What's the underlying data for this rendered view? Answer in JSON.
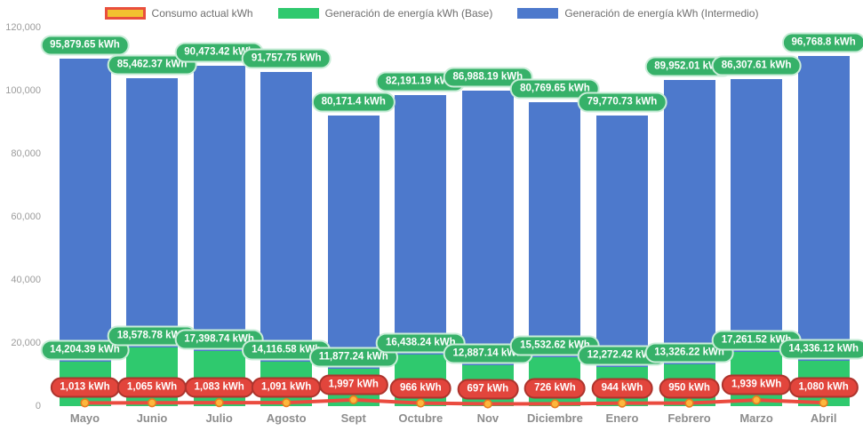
{
  "legend": {
    "items": [
      {
        "label": "Consumo actual kWh",
        "color": "#f2c230",
        "border": "#e94f3d"
      },
      {
        "label": "Generación de energía kWh (Base)",
        "color": "#2fc96e"
      },
      {
        "label": "Generación de energía kWh (Intermedio)",
        "color": "#4d79cc"
      }
    ]
  },
  "chart_data": {
    "type": "bar",
    "stacked": true,
    "title": "",
    "xlabel": "",
    "ylabel": "",
    "grid": false,
    "legend_position": "top",
    "ylim": [
      0,
      120000
    ],
    "y_ticks": [
      "0",
      "20,000",
      "40,000",
      "60,000",
      "80,000",
      "100,000",
      "120,000"
    ],
    "y_tick_values": [
      0,
      20000,
      40000,
      60000,
      80000,
      100000,
      120000
    ],
    "categories": [
      "Mayo",
      "Junio",
      "Julio",
      "Agosto",
      "Sept",
      "Octubre",
      "Nov",
      "Diciembre",
      "Enero",
      "Febrero",
      "Marzo",
      "Abril"
    ],
    "series": [
      {
        "name": "Consumo actual kWh",
        "type": "line",
        "color": "#ea4b3f",
        "marker_color": "#fcb73c",
        "marker_border": "#e87c1f",
        "label_bg": "#e2453c",
        "values": [
          1013,
          1065,
          1083,
          1091,
          1997,
          966,
          697,
          726,
          944,
          950,
          1939,
          1080
        ],
        "labels": [
          "1,013 kWh",
          "1,065 kWh",
          "1,083 kWh",
          "1,091 kWh",
          "1,997 kWh",
          "966 kWh",
          "697 kWh",
          "726 kWh",
          "944 kWh",
          "950 kWh",
          "1,939 kWh",
          "1,080 kWh"
        ]
      },
      {
        "name": "Generación de energía kWh (Base)",
        "type": "bar",
        "color": "#2fc96e",
        "label_bg": "#36b169",
        "values": [
          14204.39,
          18578.78,
          17398.74,
          14116.58,
          11877.24,
          16438.24,
          12887.14,
          15532.62,
          12272.42,
          13326.22,
          17261.52,
          14336.12
        ],
        "labels": [
          "14,204.39 kWh",
          "18,578.78 kWh",
          "17,398.74 kWh",
          "14,116.58 kWh",
          "11,877.24 kWh",
          "16,438.24 kWh",
          "12,887.14 kWh",
          "15,532.62 kWh",
          "12,272.42 kWh",
          "13,326.22 kWh",
          "17,261.52 kWh",
          "14,336.12 kWh"
        ]
      },
      {
        "name": "Generación de energía kWh (Intermedio)",
        "type": "bar",
        "color": "#4d79cc",
        "label_bg": "#36b169",
        "values": [
          95879.65,
          85462.37,
          90473.42,
          91757.75,
          80171.4,
          82191.19,
          86988.19,
          80769.65,
          79770.73,
          89952.01,
          86307.61,
          96768.8
        ],
        "labels": [
          "95,879.65 kWh",
          "85,462.37 kWh",
          "90,473.42 kWh",
          "91,757.75 kWh",
          "80,171.4 kWh",
          "82,191.19 kWh",
          "86,988.19 kWh",
          "80,769.65 kWh",
          "79,770.73 kWh",
          "89,952.01 kWh",
          "86,307.61 kWh",
          "96,768.8 kWh"
        ]
      }
    ]
  }
}
